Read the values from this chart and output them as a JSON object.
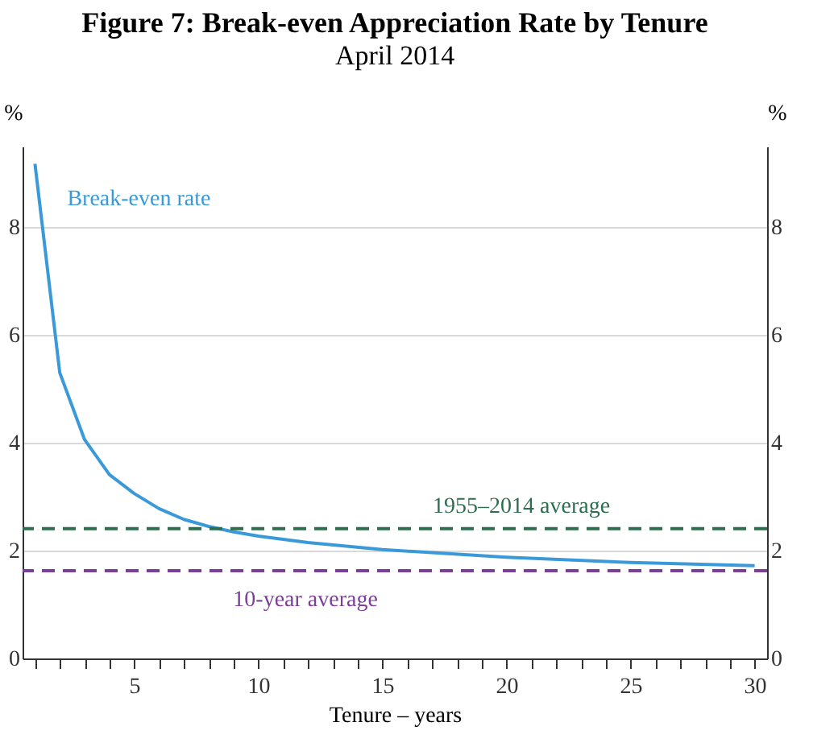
{
  "chart_data": {
    "type": "line",
    "title": "Figure 7: Break-even Appreciation Rate by Tenure",
    "subtitle": "April 2014",
    "xlabel": "Tenure – years",
    "ylabel": "%",
    "y2label": "%",
    "x": [
      1,
      2,
      3,
      4,
      5,
      6,
      7,
      8,
      9,
      10,
      12,
      15,
      20,
      25,
      30
    ],
    "series": [
      {
        "name": "Break-even rate",
        "color": "#3a9ad9",
        "values": [
          9.18,
          5.3,
          4.06,
          3.41,
          3.06,
          2.78,
          2.58,
          2.45,
          2.35,
          2.27,
          2.15,
          2.02,
          1.88,
          1.78,
          1.72
        ]
      }
    ],
    "xlim": [
      0.5,
      30.5
    ],
    "xticks": [
      {
        "value": 1,
        "label": null
      },
      {
        "value": 2,
        "label": null
      },
      {
        "value": 3,
        "label": null
      },
      {
        "value": 4,
        "label": null
      },
      5,
      {
        "value": 6,
        "label": null
      },
      {
        "value": 7,
        "label": null
      },
      {
        "value": 8,
        "label": null
      },
      {
        "value": 9,
        "label": null
      },
      10,
      {
        "value": 11,
        "label": null
      },
      {
        "value": 12,
        "label": null
      },
      {
        "value": 13,
        "label": null
      },
      {
        "value": 14,
        "label": null
      },
      15,
      {
        "value": 16,
        "label": null
      },
      {
        "value": 17,
        "label": null
      },
      {
        "value": 18,
        "label": null
      },
      {
        "value": 19,
        "label": null
      },
      20,
      {
        "value": 21,
        "label": null
      },
      {
        "value": 22,
        "label": null
      },
      {
        "value": 23,
        "label": null
      },
      {
        "value": 24,
        "label": null
      },
      25,
      {
        "value": 26,
        "label": null
      },
      {
        "value": 27,
        "label": null
      },
      {
        "value": 28,
        "label": null
      },
      {
        "value": 29,
        "label": null
      },
      30
    ],
    "ylim": [
      0,
      9.5
    ],
    "yticks": [
      0,
      2,
      4,
      6,
      8
    ],
    "y2lim": [
      0,
      9.5
    ],
    "y2ticks": [
      0,
      2,
      4,
      6,
      8
    ],
    "ref_lines": [
      {
        "axis": "y",
        "value": 2.41,
        "label": "1955–2014 average",
        "color": "#2e6e4e",
        "line_style": "dashed"
      },
      {
        "axis": "y",
        "value": 1.63,
        "label": "10-year average",
        "color": "#7b3f98",
        "line_style": "dashed"
      }
    ],
    "grid": "y",
    "marker": "none",
    "line_style": "solid"
  }
}
